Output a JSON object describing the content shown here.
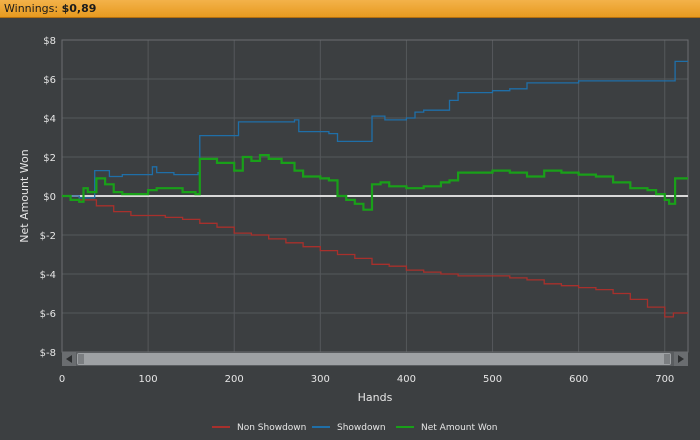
{
  "header": {
    "label": "Winnings:",
    "value": "$0,89"
  },
  "colors": {
    "background": "#3c3f41",
    "plot_bg": "#3c3f41",
    "grid": "#55585b",
    "zero_line": "#d9d9d9",
    "non_showdown": "#a8302c",
    "showdown": "#1f6fa8",
    "net_amount_won": "#19a019",
    "header": "#e99e26"
  },
  "chart_data": {
    "type": "line",
    "title": "",
    "xlabel": "Hands",
    "ylabel": "Net Amount Won",
    "xlim": [
      0,
      727
    ],
    "ylim": [
      -8,
      8
    ],
    "x_ticks": [
      0,
      100,
      200,
      300,
      400,
      500,
      600,
      700
    ],
    "x_tick_labels": [
      "0",
      "100",
      "200",
      "300",
      "400",
      "500",
      "600",
      "700"
    ],
    "y_ticks": [
      8,
      6,
      4,
      2,
      0,
      -2,
      -4,
      -6,
      -8
    ],
    "y_tick_labels": [
      "$8",
      "$6",
      "$4",
      "$2",
      "$0",
      "$-2",
      "$-4",
      "$-6",
      "$-8"
    ],
    "grid": true,
    "legend_position": "bottom",
    "series": [
      {
        "name": "Non Showdown",
        "color": "#a8302c",
        "x": [
          0,
          20,
          40,
          60,
          80,
          100,
          120,
          140,
          160,
          180,
          200,
          220,
          240,
          260,
          280,
          300,
          320,
          340,
          360,
          380,
          400,
          420,
          440,
          460,
          480,
          500,
          520,
          540,
          560,
          580,
          600,
          620,
          640,
          660,
          680,
          700,
          710,
          727
        ],
        "y": [
          0,
          -0.2,
          -0.5,
          -0.8,
          -1.0,
          -1.0,
          -1.1,
          -1.2,
          -1.4,
          -1.6,
          -1.9,
          -2.0,
          -2.2,
          -2.4,
          -2.6,
          -2.8,
          -3.0,
          -3.2,
          -3.5,
          -3.6,
          -3.8,
          -3.9,
          -4.0,
          -4.1,
          -4.1,
          -4.1,
          -4.2,
          -4.3,
          -4.5,
          -4.6,
          -4.7,
          -4.8,
          -5.0,
          -5.3,
          -5.7,
          -6.2,
          -6.0,
          -6.0
        ]
      },
      {
        "name": "Showdown",
        "color": "#1f6fa8",
        "x": [
          0,
          20,
          38,
          55,
          70,
          105,
          110,
          130,
          158,
          160,
          200,
          205,
          240,
          270,
          275,
          310,
          320,
          350,
          360,
          370,
          375,
          380,
          400,
          410,
          420,
          440,
          450,
          460,
          480,
          500,
          520,
          540,
          560,
          600,
          640,
          680,
          700,
          712,
          727
        ],
        "y": [
          0,
          -0.1,
          1.3,
          1.0,
          1.1,
          1.5,
          1.2,
          1.1,
          1.2,
          3.1,
          3.1,
          3.8,
          3.8,
          3.9,
          3.3,
          3.2,
          2.8,
          2.8,
          4.1,
          4.1,
          3.9,
          3.9,
          4.0,
          4.3,
          4.4,
          4.4,
          4.9,
          5.3,
          5.3,
          5.4,
          5.5,
          5.8,
          5.8,
          5.9,
          5.9,
          5.9,
          5.9,
          6.9,
          6.9
        ]
      },
      {
        "name": "Net Amount Won",
        "color": "#19a019",
        "x": [
          0,
          10,
          20,
          25,
          30,
          40,
          50,
          60,
          70,
          80,
          100,
          110,
          140,
          155,
          160,
          180,
          200,
          210,
          220,
          230,
          240,
          255,
          270,
          280,
          300,
          310,
          320,
          330,
          340,
          350,
          360,
          370,
          380,
          400,
          420,
          440,
          450,
          460,
          480,
          500,
          520,
          540,
          560,
          580,
          600,
          620,
          640,
          660,
          680,
          690,
          700,
          705,
          712,
          727
        ],
        "y": [
          0,
          -0.2,
          -0.3,
          0.4,
          0.2,
          0.9,
          0.6,
          0.2,
          0.1,
          0.1,
          0.3,
          0.4,
          0.2,
          0.1,
          1.9,
          1.7,
          1.3,
          2.0,
          1.8,
          2.1,
          1.9,
          1.7,
          1.3,
          1.0,
          0.9,
          0.8,
          0.0,
          -0.2,
          -0.4,
          -0.7,
          0.6,
          0.7,
          0.5,
          0.4,
          0.5,
          0.7,
          0.8,
          1.2,
          1.2,
          1.3,
          1.2,
          1.0,
          1.3,
          1.2,
          1.1,
          1.0,
          0.7,
          0.4,
          0.3,
          0.1,
          -0.2,
          -0.4,
          0.9,
          0.9
        ]
      }
    ]
  }
}
